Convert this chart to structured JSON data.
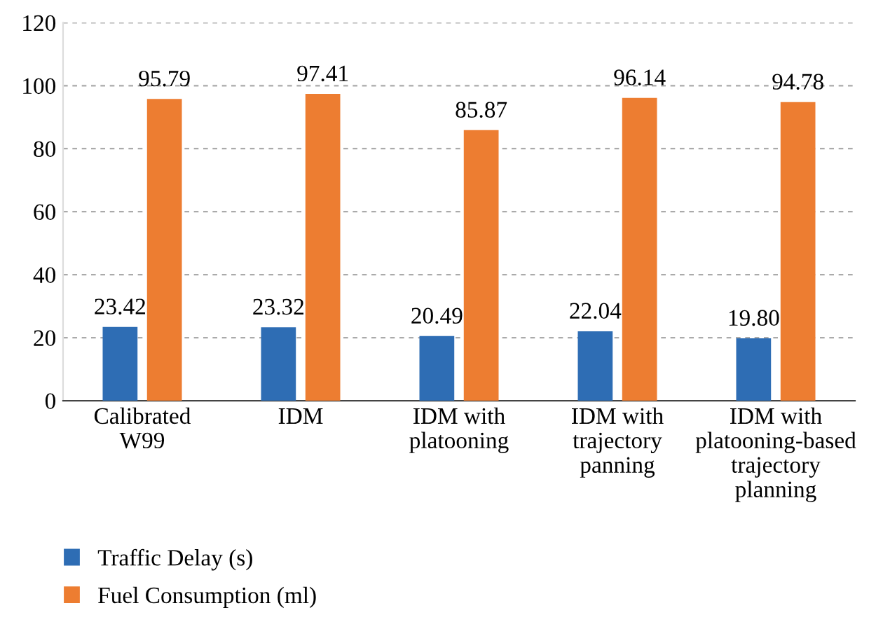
{
  "chart_data": {
    "type": "bar",
    "categories": [
      "Calibrated\nW99",
      "IDM",
      "IDM with\nplatooning",
      "IDM with\ntrajectory\npanning",
      "IDM with\nplatooning-based\ntrajectory\nplanning"
    ],
    "series": [
      {
        "name": "Traffic Delay (s)",
        "color": "#2e6db4",
        "values": [
          23.42,
          23.32,
          20.49,
          22.04,
          19.8
        ],
        "value_labels": [
          "23.42",
          "23.32",
          "20.49",
          "22.04",
          "19.80"
        ]
      },
      {
        "name": "Fuel Consumption (ml)",
        "color": "#ed7d31",
        "values": [
          95.79,
          97.41,
          85.87,
          96.14,
          94.78
        ],
        "value_labels": [
          "95.79",
          "97.41",
          "85.87",
          "96.14",
          "94.78"
        ]
      }
    ],
    "ylim": [
      0,
      120
    ],
    "yticks": [
      0,
      20,
      40,
      60,
      80,
      100,
      120
    ],
    "grid": "y",
    "legend": "bottom left"
  }
}
